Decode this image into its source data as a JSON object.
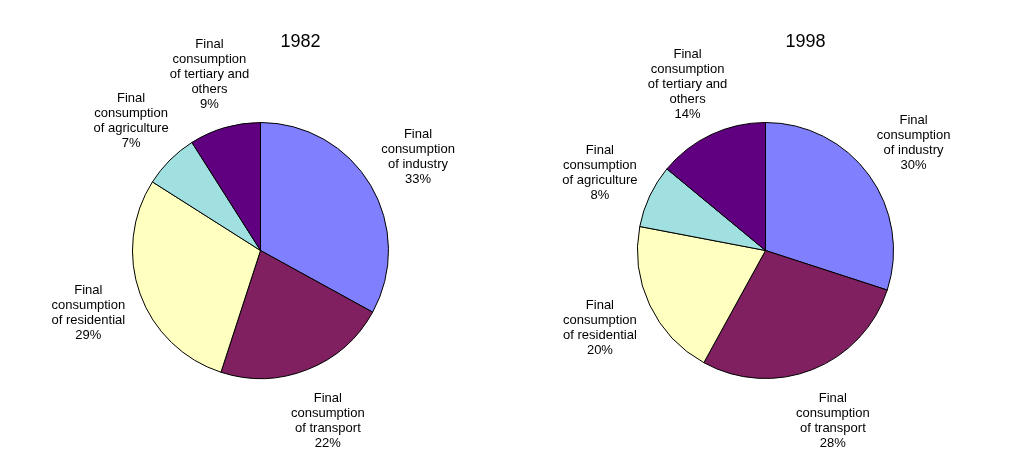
{
  "chart_data": [
    {
      "type": "pie",
      "title": "1982",
      "categories": [
        "Final consumption of industry",
        "Final consumption of transport",
        "Final consumption of residential",
        "Final consumption of agriculture",
        "Final consumption of tertiary and others"
      ],
      "values": [
        33,
        22,
        29,
        7,
        9
      ],
      "value_labels": [
        "33%",
        "22%",
        "29%",
        "7%",
        "9%"
      ],
      "colors": [
        "#8080ff",
        "#802060",
        "#ffffc0",
        "#a0e0e0",
        "#600080"
      ],
      "legend": false
    },
    {
      "type": "pie",
      "title": "1998",
      "categories": [
        "Final consumption of industry",
        "Final consumption of transport",
        "Final consumption of residential",
        "Final consumption of agriculture",
        "Final consumption of tertiary and others"
      ],
      "values": [
        30,
        28,
        20,
        8,
        14
      ],
      "value_labels": [
        "30%",
        "28%",
        "20%",
        "8%",
        "14%"
      ],
      "colors": [
        "#8080ff",
        "#802060",
        "#ffffc0",
        "#a0e0e0",
        "#600080"
      ],
      "legend": false
    }
  ]
}
